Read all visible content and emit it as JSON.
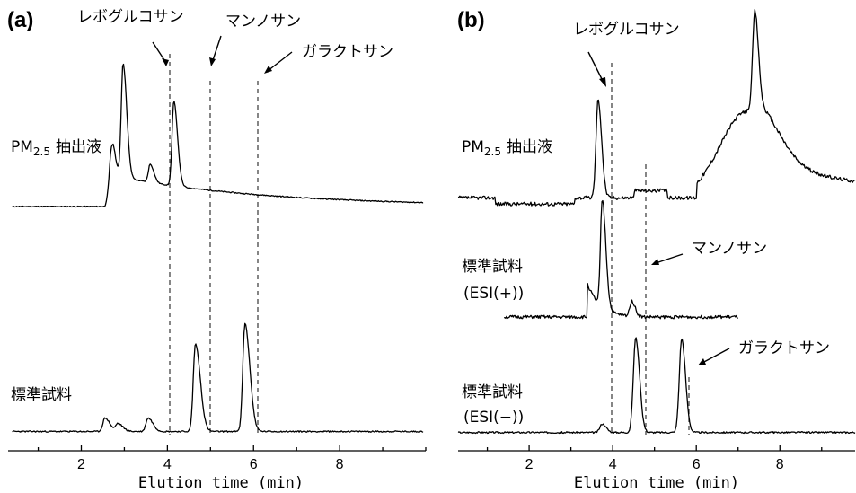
{
  "chart_data": [
    {
      "panel": "(a)",
      "type": "line",
      "xlabel": "Elution time (min)",
      "xlim": [
        0.3,
        10.0
      ],
      "xticks": [
        2,
        4,
        6,
        8
      ],
      "ref_lines": [
        {
          "name": "レボグルコサン",
          "x": 3.6
        },
        {
          "name": "マンノサン",
          "x": 4.6
        },
        {
          "name": "ガラクトサン",
          "x": 5.8
        }
      ],
      "series": [
        {
          "label_prefix": "PM",
          "label_sub": "2.5",
          "label_suffix": "抽出液",
          "peaks": [
            {
              "t": 2.7,
              "height": 0.28
            },
            {
              "t": 2.97,
              "height": 0.88
            },
            {
              "t": 3.6,
              "height": 0.14
            },
            {
              "t": 4.15,
              "height": 0.65
            }
          ]
        },
        {
          "label": "標準試料",
          "peaks": [
            {
              "t": 2.55,
              "height": 0.12
            },
            {
              "t": 2.85,
              "height": 0.07
            },
            {
              "t": 3.55,
              "height": 0.12
            },
            {
              "t": 4.65,
              "height": 0.78
            },
            {
              "t": 5.8,
              "height": 0.96
            }
          ]
        }
      ]
    },
    {
      "panel": "(b)",
      "type": "line",
      "xlabel": "Elution time (min)",
      "xlim": [
        0.3,
        9.8
      ],
      "xticks": [
        2,
        4,
        6,
        8
      ],
      "ref_lines": [
        {
          "name": "レボグルコサン",
          "x": 3.75
        },
        {
          "name": "マンノサン",
          "x": 4.6
        },
        {
          "name": "ガラクトサン",
          "x": 5.65
        }
      ],
      "series": [
        {
          "label_prefix": "PM",
          "label_sub": "2.5",
          "label_suffix": "抽出液",
          "peaks": [
            {
              "t": 3.65,
              "height": 0.95
            },
            {
              "t": 7.4,
              "height": 0.9
            }
          ]
        },
        {
          "label": "標準試料",
          "label2": "(ESI(+))",
          "peaks": [
            {
              "t": 3.75,
              "height": 1.0
            },
            {
              "t": 4.45,
              "height": 0.15
            }
          ]
        },
        {
          "label": "標準試料",
          "label2": "(ESI(−))",
          "peaks": [
            {
              "t": 3.75,
              "height": 0.08
            },
            {
              "t": 4.55,
              "height": 0.88
            },
            {
              "t": 5.65,
              "height": 0.87
            }
          ]
        }
      ]
    }
  ]
}
